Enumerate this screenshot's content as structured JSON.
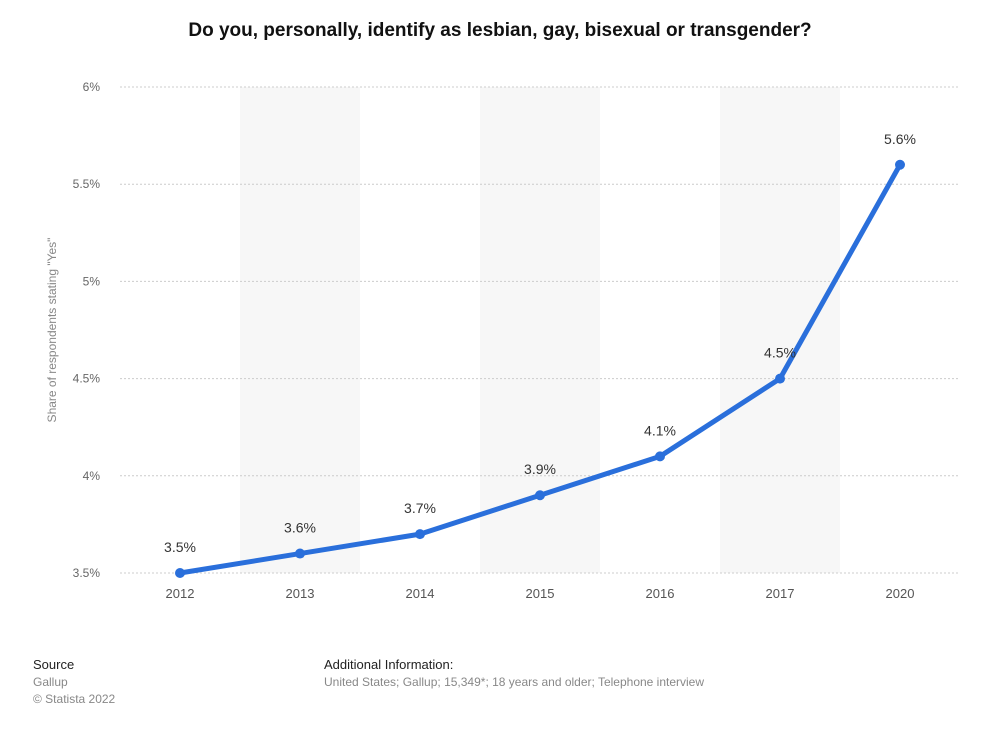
{
  "chart_data": {
    "type": "line",
    "title": "Do you, personally, identify as lesbian, gay, bisexual or transgender?",
    "ylabel": "Share of respondents stating \"Yes\"",
    "xlabel": "",
    "categories": [
      "2012",
      "2013",
      "2014",
      "2015",
      "2016",
      "2017",
      "2020"
    ],
    "series": [
      {
        "values": [
          3.5,
          3.6,
          3.7,
          3.9,
          4.1,
          4.5,
          5.6
        ]
      }
    ],
    "data_labels": [
      "3.5%",
      "3.6%",
      "3.7%",
      "3.9%",
      "4.1%",
      "4.5%",
      "5.6%"
    ],
    "ylim": [
      3.5,
      6
    ],
    "yticks": [
      3.5,
      4,
      4.5,
      5,
      5.5,
      6
    ],
    "ytick_labels": [
      "3.5%",
      "4%",
      "4.5%",
      "5%",
      "5.5%",
      "6%"
    ],
    "grid": true,
    "colors": {
      "line": "#2a6fdb",
      "band": "#f7f7f7",
      "grid": "#cccccc"
    }
  },
  "footer": {
    "source_heading": "Source",
    "source_name": "Gallup",
    "copyright": "© Statista 2022",
    "additional_heading": "Additional Information:",
    "additional_text": "United States; Gallup; 15,349*; 18 years and older; Telephone interview"
  }
}
